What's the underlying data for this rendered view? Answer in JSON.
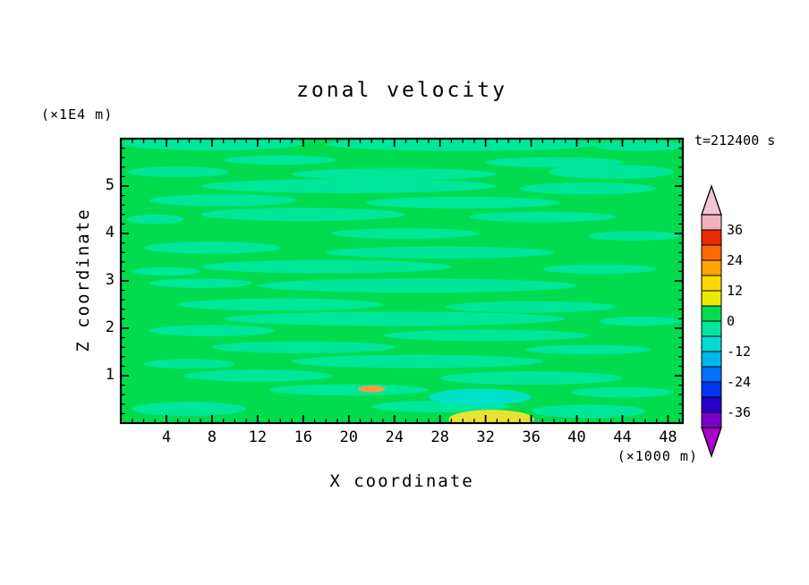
{
  "chart_data": {
    "type": "heatmap",
    "title": "zonal velocity",
    "timestamp": "t=212400 s",
    "xlabel": "X coordinate",
    "x_unit_label": "(×1000 m)",
    "ylabel": "Z coordinate",
    "z_unit_label": "(×1E4 m)",
    "x_range": [
      0,
      49.3
    ],
    "z_range": [
      0,
      6
    ],
    "x_major_ticks": [
      4,
      8,
      12,
      16,
      20,
      24,
      28,
      32,
      36,
      40,
      44,
      48
    ],
    "x_minor_step": 1,
    "z_major_ticks": [
      1,
      2,
      3,
      4,
      5
    ],
    "z_minor_step": 0.2,
    "contour_interval": 6,
    "field_description": "Filled contour field of zonal velocity; nearly uniform near 0: background band 0..6, horizontal streaks -6..0, one aquamarine patch -12..-6 and small warm patches (6..12 yellow, 18..24 orange) near the bottom.",
    "background": {
      "value_range": [
        0,
        6
      ],
      "color": "#00dc4e"
    },
    "streaks": {
      "value_range": [
        -6,
        0
      ],
      "color": "#00e69b",
      "blobs": [
        [
          8,
          5.9,
          16,
          0.3
        ],
        [
          30,
          5.88,
          24,
          0.28
        ],
        [
          45.5,
          5.85,
          8,
          0.22
        ],
        [
          14,
          5.55,
          10,
          0.2
        ],
        [
          38,
          5.5,
          12,
          0.22
        ],
        [
          5,
          5.3,
          9,
          0.22
        ],
        [
          24,
          5.25,
          18,
          0.25
        ],
        [
          43,
          5.3,
          11,
          0.3
        ],
        [
          20,
          5.0,
          26,
          0.3
        ],
        [
          41,
          4.95,
          12,
          0.25
        ],
        [
          9,
          4.7,
          13,
          0.25
        ],
        [
          30,
          4.65,
          17,
          0.25
        ],
        [
          16,
          4.4,
          18,
          0.28
        ],
        [
          37,
          4.35,
          13,
          0.22
        ],
        [
          3,
          4.3,
          5,
          0.2
        ],
        [
          25,
          4.0,
          13,
          0.22
        ],
        [
          45,
          3.95,
          8,
          0.2
        ],
        [
          8,
          3.7,
          12,
          0.25
        ],
        [
          28,
          3.6,
          20,
          0.25
        ],
        [
          18,
          3.3,
          22,
          0.28
        ],
        [
          42,
          3.25,
          10,
          0.2
        ],
        [
          4,
          3.2,
          6,
          0.18
        ],
        [
          26,
          2.9,
          28,
          0.3
        ],
        [
          7,
          2.95,
          9,
          0.2
        ],
        [
          14,
          2.5,
          18,
          0.26
        ],
        [
          36,
          2.45,
          15,
          0.24
        ],
        [
          24,
          2.2,
          30,
          0.3
        ],
        [
          45.5,
          2.15,
          7,
          0.2
        ],
        [
          8,
          1.95,
          11,
          0.24
        ],
        [
          32,
          1.85,
          18,
          0.24
        ],
        [
          16,
          1.6,
          16,
          0.25
        ],
        [
          41,
          1.55,
          11,
          0.2
        ],
        [
          26,
          1.3,
          22,
          0.28
        ],
        [
          6,
          1.25,
          8,
          0.2
        ],
        [
          12,
          1.0,
          13,
          0.25
        ],
        [
          36,
          0.95,
          16,
          0.28
        ],
        [
          20,
          0.7,
          14,
          0.24
        ],
        [
          44,
          0.65,
          9,
          0.22
        ],
        [
          6,
          0.3,
          10,
          0.3
        ],
        [
          28,
          0.35,
          12,
          0.25
        ],
        [
          41,
          0.25,
          10,
          0.28
        ]
      ]
    },
    "aqua_patches": {
      "value_range": [
        -12,
        -6
      ],
      "color": "#00e2c8",
      "blobs": [
        [
          31.5,
          0.55,
          9,
          0.35
        ]
      ]
    },
    "warm_patches": [
      {
        "value_range": [
          6,
          12
        ],
        "color": "#e6e432",
        "blobs": [
          [
            32.5,
            0.08,
            7.5,
            0.4
          ]
        ]
      },
      {
        "value_range": [
          18,
          24
        ],
        "color": "#ff9b3c",
        "blobs": [
          [
            22,
            0.72,
            2.4,
            0.14
          ]
        ]
      }
    ],
    "colorbar": {
      "tick_labels": [
        36,
        24,
        12,
        0,
        -12,
        -24,
        -36
      ],
      "band_step": 6,
      "bands_top_to_bottom": [
        {
          "range": [
            36,
            42
          ],
          "color": "#f2afc0"
        },
        {
          "range": [
            30,
            36
          ],
          "color": "#ee2a00"
        },
        {
          "range": [
            24,
            30
          ],
          "color": "#ff6a00"
        },
        {
          "range": [
            18,
            24
          ],
          "color": "#ffa400"
        },
        {
          "range": [
            12,
            18
          ],
          "color": "#ffd800"
        },
        {
          "range": [
            6,
            12
          ],
          "color": "#eaea00"
        },
        {
          "range": [
            0,
            6
          ],
          "color": "#00dc4e"
        },
        {
          "range": [
            -6,
            0
          ],
          "color": "#00e69b"
        },
        {
          "range": [
            -12,
            -6
          ],
          "color": "#00dcd2"
        },
        {
          "range": [
            -18,
            -12
          ],
          "color": "#00b4ee"
        },
        {
          "range": [
            -24,
            -18
          ],
          "color": "#0072ff"
        },
        {
          "range": [
            -30,
            -24
          ],
          "color": "#0034ee"
        },
        {
          "range": [
            -36,
            -30
          ],
          "color": "#2a00c8"
        },
        {
          "range": [
            -42,
            -36
          ],
          "color": "#7a00c8"
        }
      ],
      "over_arrow_color": "#f4c4d4",
      "under_arrow_color": "#aa00c8"
    },
    "frame_color": "#000000"
  }
}
